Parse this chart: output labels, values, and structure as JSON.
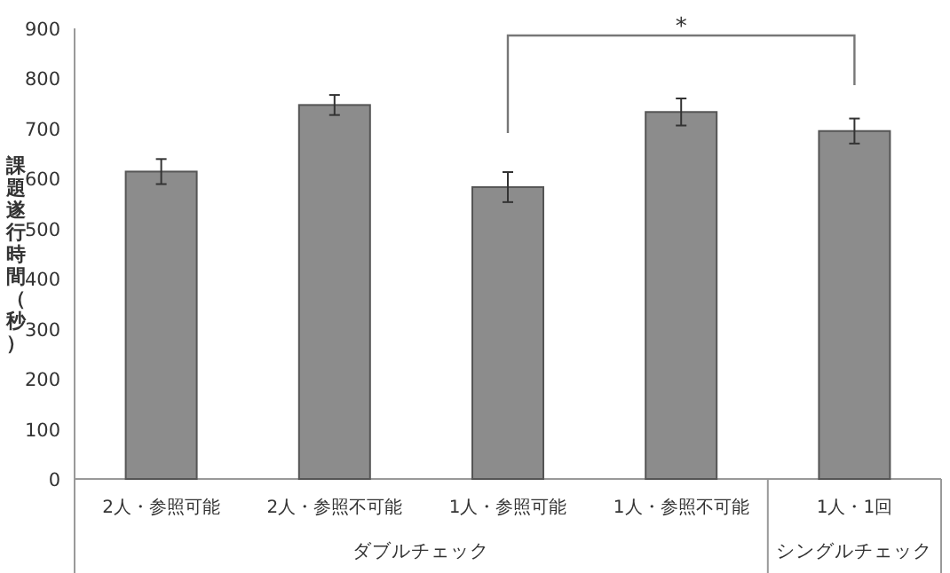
{
  "chart_data": {
    "type": "bar",
    "categories": [
      "2人・参照可能",
      "2人・参照不可能",
      "1人・参照可能",
      "1人・参照不可能",
      "1人・1回"
    ],
    "values": [
      614,
      747,
      583,
      733,
      695
    ],
    "errors": [
      25,
      20,
      30,
      27,
      25
    ],
    "color": "#8c8c8c",
    "ylabel": "課題遂行時間（秒）",
    "ylim": [
      0,
      900
    ],
    "yticks": [
      0,
      100,
      200,
      300,
      400,
      500,
      600,
      700,
      800,
      900
    ],
    "annotations": [
      "*",
      "ダブルチェック",
      "シングルチェック"
    ],
    "grid": false
  }
}
